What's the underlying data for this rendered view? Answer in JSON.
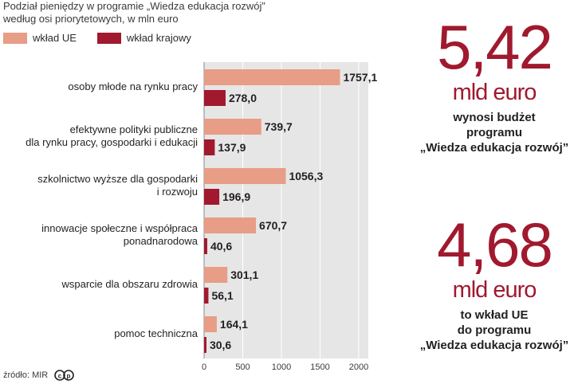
{
  "subtitle": {
    "line1": "Podział pieniędzy w programie „Wiedza edukacja rozwój”",
    "line2": "według osi priorytetowych, w mln euro"
  },
  "legend": [
    {
      "label": "wkład UE",
      "color": "#e79d86"
    },
    {
      "label": "wkład krajowy",
      "color": "#a0192e"
    }
  ],
  "chart_data": {
    "type": "bar",
    "orientation": "horizontal",
    "categories": [
      [
        "osoby młode na rynku pracy"
      ],
      [
        "efektywne polityki publiczne",
        "dla rynku pracy, gospodarki i edukacji"
      ],
      [
        "szkolnictwo wyższe dla gospodarki",
        "i rozwoju"
      ],
      [
        "innowacje społeczne i współpraca",
        "ponadnarodowa"
      ],
      [
        "wsparcie dla obszaru zdrowia"
      ],
      [
        "pomoc techniczna"
      ]
    ],
    "series": [
      {
        "name": "wkład UE",
        "color": "#e79d86",
        "values": [
          1757.1,
          739.7,
          1056.3,
          670.7,
          301.1,
          164.1
        ],
        "labels": [
          "1757,1",
          "739,7",
          "1056,3",
          "670,7",
          "301,1",
          "164,1"
        ]
      },
      {
        "name": "wkład krajowy",
        "color": "#a0192e",
        "values": [
          278.0,
          137.9,
          196.9,
          40.6,
          56.1,
          30.6
        ],
        "labels": [
          "278,0",
          "137,9",
          "196,9",
          "40,6",
          "56,1",
          "30,6"
        ]
      }
    ],
    "xlim": [
      0,
      2000
    ],
    "ticks": [
      0,
      500,
      1000,
      1500,
      2000
    ],
    "grid": true
  },
  "stats": [
    {
      "value": "5,42",
      "unit": "mld euro",
      "desc": [
        "wynosi budżet",
        "programu",
        "„Wiedza edukacja rozwój”"
      ]
    },
    {
      "value": "4,68",
      "unit": "mld euro",
      "desc": [
        "to wkład UE",
        "do programu",
        "„Wiedza edukacja rozwój”"
      ]
    }
  ],
  "source": "źródło: MIR"
}
